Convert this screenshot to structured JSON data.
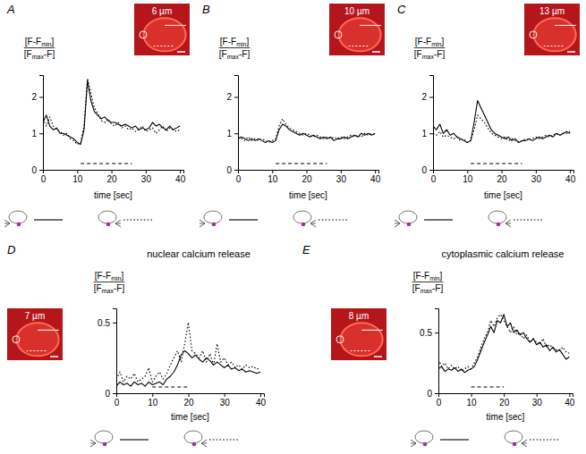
{
  "chart_data": [
    {
      "panel": "A",
      "type": "line",
      "inset_label": "6 µm",
      "xlabel": "time [sec]",
      "ylabel": {
        "numerator": [
          "[F-F",
          "min",
          "]"
        ],
        "denominator": [
          "[F",
          "max",
          "-F]"
        ]
      },
      "legend": "bottom",
      "xlim": [
        0,
        41
      ],
      "xticks": [
        0,
        10,
        20,
        30,
        40
      ],
      "ylim": [
        0,
        2.6
      ],
      "yticks": [
        0,
        1,
        2
      ],
      "stimulus": [
        11,
        26
      ],
      "x": [
        0,
        1,
        2,
        3,
        4,
        5,
        6,
        7,
        8,
        9,
        10,
        11,
        12,
        13,
        14,
        15,
        16,
        17,
        18,
        19,
        20,
        21,
        22,
        23,
        24,
        25,
        26,
        27,
        28,
        29,
        30,
        31,
        32,
        33,
        34,
        35,
        36,
        37,
        38,
        39,
        40
      ],
      "series": [
        {
          "color": "#000000",
          "line_style": "solid",
          "values": [
            1.3,
            1.5,
            1.2,
            1.1,
            1.15,
            1.0,
            1.0,
            0.95,
            0.9,
            0.85,
            0.75,
            0.7,
            1.1,
            2.45,
            1.9,
            1.6,
            1.5,
            1.4,
            1.45,
            1.35,
            1.3,
            1.3,
            1.25,
            1.2,
            1.25,
            1.2,
            1.15,
            1.2,
            1.1,
            1.15,
            1.1,
            1.15,
            1.3,
            1.2,
            1.25,
            1.15,
            1.1,
            1.2,
            1.1,
            1.15,
            1.2
          ]
        },
        {
          "color": "#000000",
          "line_style": "dotted",
          "values": [
            1.4,
            1.2,
            1.45,
            1.2,
            1.1,
            1.05,
            0.95,
            1.0,
            0.85,
            0.8,
            0.7,
            0.75,
            1.2,
            2.5,
            2.1,
            1.7,
            1.55,
            1.35,
            1.3,
            1.4,
            1.25,
            1.2,
            1.3,
            1.15,
            1.2,
            1.1,
            1.15,
            1.05,
            1.1,
            1.2,
            1.05,
            1.1,
            1.15,
            1.0,
            1.1,
            1.2,
            1.05,
            1.15,
            1.1,
            1.05,
            1.1
          ]
        }
      ]
    },
    {
      "panel": "B",
      "type": "line",
      "inset_label": "10 µm",
      "xlabel": "time [sec]",
      "ylabel": {
        "numerator": [
          "[F-F",
          "min",
          "]"
        ],
        "denominator": [
          "[F",
          "max",
          "-F]"
        ]
      },
      "legend": "bottom",
      "xlim": [
        0,
        41
      ],
      "xticks": [
        0,
        10,
        20,
        30,
        40
      ],
      "ylim": [
        0,
        2.6
      ],
      "yticks": [
        0,
        1,
        2
      ],
      "stimulus": [
        11,
        26
      ],
      "x": [
        0,
        1,
        2,
        3,
        4,
        5,
        6,
        7,
        8,
        9,
        10,
        11,
        12,
        13,
        14,
        15,
        16,
        17,
        18,
        19,
        20,
        21,
        22,
        23,
        24,
        25,
        26,
        27,
        28,
        29,
        30,
        31,
        32,
        33,
        34,
        35,
        36,
        37,
        38,
        39,
        40
      ],
      "series": [
        {
          "color": "#000000",
          "line_style": "solid",
          "values": [
            0.85,
            0.9,
            0.85,
            0.8,
            0.85,
            0.8,
            0.85,
            0.8,
            0.75,
            0.8,
            0.75,
            0.8,
            1.1,
            1.25,
            1.2,
            1.1,
            1.05,
            1.0,
            0.95,
            1.0,
            0.95,
            0.9,
            0.95,
            0.9,
            0.85,
            0.9,
            0.85,
            0.9,
            0.8,
            0.85,
            0.85,
            0.9,
            0.85,
            0.9,
            0.95,
            0.9,
            1.0,
            0.95,
            1.0,
            0.95,
            1.0
          ]
        },
        {
          "color": "#000000",
          "line_style": "dotted",
          "values": [
            0.9,
            0.85,
            0.8,
            0.9,
            0.8,
            0.85,
            0.8,
            0.85,
            0.8,
            0.75,
            0.8,
            0.85,
            1.2,
            1.4,
            1.25,
            1.15,
            1.1,
            1.05,
            1.0,
            0.95,
            1.0,
            0.95,
            0.9,
            0.95,
            0.9,
            0.85,
            0.9,
            0.85,
            0.9,
            0.85,
            0.9,
            0.85,
            0.9,
            0.95,
            0.9,
            0.95,
            0.9,
            1.0,
            0.95,
            1.0,
            0.95
          ]
        }
      ]
    },
    {
      "panel": "C",
      "type": "line",
      "inset_label": "13 µm",
      "xlabel": "time [sec]",
      "ylabel": {
        "numerator": [
          "[F-F",
          "min",
          "]"
        ],
        "denominator": [
          "[F",
          "max",
          "-F]"
        ]
      },
      "legend": "bottom",
      "xlim": [
        0,
        41
      ],
      "xticks": [
        0,
        10,
        20,
        30,
        40
      ],
      "ylim": [
        0,
        2.6
      ],
      "yticks": [
        0,
        1,
        2
      ],
      "stimulus": [
        11,
        26
      ],
      "x": [
        0,
        1,
        2,
        3,
        4,
        5,
        6,
        7,
        8,
        9,
        10,
        11,
        12,
        13,
        14,
        15,
        16,
        17,
        18,
        19,
        20,
        21,
        22,
        23,
        24,
        25,
        26,
        27,
        28,
        29,
        30,
        31,
        32,
        33,
        34,
        35,
        36,
        37,
        38,
        39,
        40
      ],
      "series": [
        {
          "color": "#000000",
          "line_style": "solid",
          "values": [
            1.2,
            1.1,
            1.25,
            1.0,
            1.1,
            0.95,
            1.0,
            0.9,
            0.85,
            0.8,
            0.75,
            0.8,
            1.3,
            1.9,
            1.7,
            1.5,
            1.3,
            1.1,
            1.0,
            0.95,
            0.9,
            0.85,
            0.9,
            0.8,
            0.85,
            0.75,
            0.8,
            0.8,
            0.85,
            0.8,
            0.85,
            0.9,
            0.85,
            0.9,
            0.95,
            0.9,
            1.0,
            0.95,
            1.0,
            1.05,
            1.0
          ]
        },
        {
          "color": "#000000",
          "line_style": "dotted",
          "values": [
            1.0,
            0.95,
            1.05,
            0.9,
            0.95,
            0.9,
            0.85,
            0.9,
            0.8,
            0.85,
            0.75,
            0.8,
            1.1,
            1.5,
            1.4,
            1.3,
            1.15,
            1.0,
            0.95,
            0.9,
            0.85,
            0.9,
            0.8,
            0.85,
            0.8,
            0.75,
            0.8,
            0.85,
            0.8,
            0.85,
            0.9,
            0.85,
            0.9,
            0.95,
            0.9,
            0.95,
            1.0,
            0.95,
            1.0,
            1.0,
            1.05
          ]
        }
      ]
    },
    {
      "panel": "D",
      "type": "line",
      "title": "nuclear calcium release",
      "inset_label": "7 µm",
      "xlabel": "time [sec]",
      "ylabel": {
        "numerator": [
          "[F-F",
          "min",
          "]"
        ],
        "denominator": [
          "[F",
          "max",
          "-F]"
        ]
      },
      "legend": "bottom",
      "xlim": [
        0,
        41
      ],
      "xticks": [
        0,
        10,
        20,
        30,
        40
      ],
      "ylim": [
        0,
        0.6
      ],
      "yticks": [
        0,
        0.5
      ],
      "stimulus": [
        10,
        20
      ],
      "x": [
        0,
        1,
        2,
        3,
        4,
        5,
        6,
        7,
        8,
        9,
        10,
        11,
        12,
        13,
        14,
        15,
        16,
        17,
        18,
        19,
        20,
        21,
        22,
        23,
        24,
        25,
        26,
        27,
        28,
        29,
        30,
        31,
        32,
        33,
        34,
        35,
        36,
        37,
        38,
        39,
        40
      ],
      "series": [
        {
          "color": "#000000",
          "line_style": "solid",
          "values": [
            0.05,
            0.08,
            0.06,
            0.07,
            0.05,
            0.08,
            0.06,
            0.07,
            0.05,
            0.08,
            0.06,
            0.07,
            0.08,
            0.06,
            0.1,
            0.12,
            0.15,
            0.2,
            0.27,
            0.3,
            0.28,
            0.25,
            0.27,
            0.24,
            0.22,
            0.25,
            0.23,
            0.2,
            0.22,
            0.2,
            0.18,
            0.2,
            0.17,
            0.18,
            0.16,
            0.17,
            0.15,
            0.16,
            0.15,
            0.14,
            0.15
          ]
        },
        {
          "color": "#000000",
          "line_style": "dotted",
          "values": [
            0.1,
            0.15,
            0.08,
            0.12,
            0.1,
            0.14,
            0.08,
            0.1,
            0.12,
            0.18,
            0.08,
            0.12,
            0.15,
            0.1,
            0.14,
            0.2,
            0.25,
            0.3,
            0.22,
            0.35,
            0.5,
            0.3,
            0.28,
            0.25,
            0.3,
            0.22,
            0.28,
            0.2,
            0.35,
            0.22,
            0.25,
            0.2,
            0.22,
            0.18,
            0.2,
            0.17,
            0.2,
            0.18,
            0.19,
            0.17,
            0.18
          ]
        }
      ]
    },
    {
      "panel": "E",
      "type": "line",
      "title": "cytoplasmic calcium release",
      "inset_label": "8 µm",
      "xlabel": "time [sec]",
      "ylabel": {
        "numerator": [
          "[F-F",
          "min",
          "]"
        ],
        "denominator": [
          "[F",
          "max",
          "-F]"
        ]
      },
      "legend": "bottom",
      "xlim": [
        0,
        41
      ],
      "xticks": [
        0,
        10,
        20,
        30,
        40
      ],
      "ylim": [
        0,
        0.7
      ],
      "yticks": [
        0,
        0.5
      ],
      "stimulus": [
        10,
        20
      ],
      "x": [
        0,
        1,
        2,
        3,
        4,
        5,
        6,
        7,
        8,
        9,
        10,
        11,
        12,
        13,
        14,
        15,
        16,
        17,
        18,
        19,
        20,
        21,
        22,
        23,
        24,
        25,
        26,
        27,
        28,
        29,
        30,
        31,
        32,
        33,
        34,
        35,
        36,
        37,
        38,
        39,
        40
      ],
      "series": [
        {
          "color": "#000000",
          "line_style": "solid",
          "values": [
            0.2,
            0.22,
            0.18,
            0.2,
            0.19,
            0.21,
            0.18,
            0.2,
            0.17,
            0.19,
            0.2,
            0.22,
            0.28,
            0.35,
            0.42,
            0.48,
            0.55,
            0.5,
            0.6,
            0.58,
            0.65,
            0.55,
            0.58,
            0.5,
            0.52,
            0.48,
            0.5,
            0.45,
            0.42,
            0.45,
            0.4,
            0.42,
            0.38,
            0.4,
            0.35,
            0.38,
            0.34,
            0.36,
            0.32,
            0.28,
            0.3
          ]
        },
        {
          "color": "#000000",
          "line_style": "dotted",
          "values": [
            0.28,
            0.22,
            0.25,
            0.2,
            0.23,
            0.2,
            0.22,
            0.18,
            0.2,
            0.22,
            0.2,
            0.25,
            0.3,
            0.38,
            0.45,
            0.5,
            0.6,
            0.55,
            0.62,
            0.65,
            0.6,
            0.55,
            0.5,
            0.55,
            0.48,
            0.5,
            0.45,
            0.48,
            0.42,
            0.45,
            0.42,
            0.4,
            0.45,
            0.38,
            0.4,
            0.37,
            0.36,
            0.35,
            0.38,
            0.34,
            0.33
          ]
        }
      ]
    }
  ]
}
